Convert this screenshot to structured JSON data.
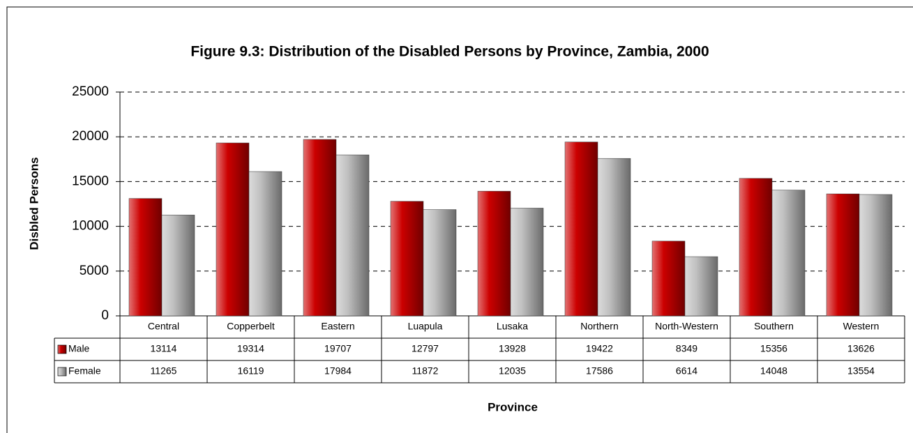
{
  "chart_data": {
    "type": "bar",
    "title": "Figure 9.3: Distribution of the Disabled Persons by Province, Zambia, 2000",
    "x_label": "Province",
    "y_label": "Disbled Persons",
    "categories": [
      "Central",
      "Copperbelt",
      "Eastern",
      "Luapula",
      "Lusaka",
      "Northern",
      "North-Western",
      "Southern",
      "Western"
    ],
    "series": [
      {
        "name": "Male",
        "color": "#cc0000",
        "values": [
          13114,
          19314,
          19707,
          12797,
          13928,
          19422,
          8349,
          15356,
          13626
        ]
      },
      {
        "name": "Female",
        "color": "#c0c0c0",
        "values": [
          11265,
          16119,
          17984,
          11872,
          12035,
          17586,
          6614,
          14048,
          13554
        ]
      }
    ],
    "ylim": [
      0,
      25000
    ],
    "yticks": [
      0,
      5000,
      10000,
      15000,
      20000,
      25000
    ],
    "grid": true
  }
}
